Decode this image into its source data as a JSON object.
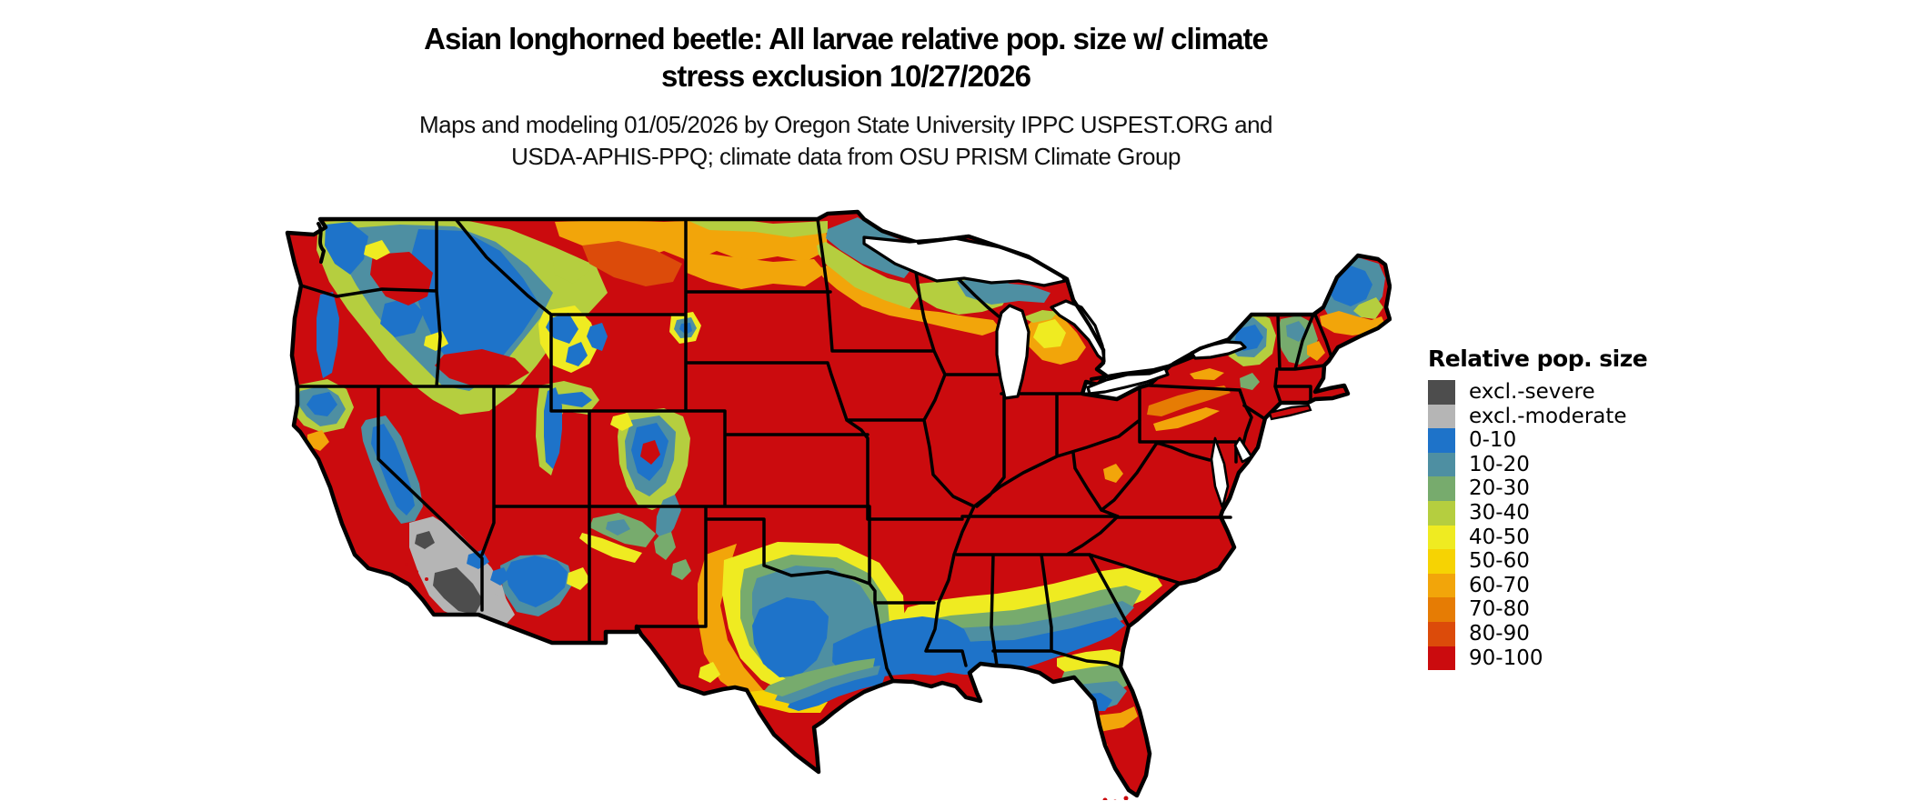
{
  "header": {
    "title_line1": "Asian longhorned beetle: All larvae relative pop. size w/ climate",
    "title_line2": "stress exclusion 10/27/2026",
    "subtitle_line1": "Maps and modeling 01/05/2026 by Oregon State University IPPC USPEST.ORG and",
    "subtitle_line2": "USDA-APHIS-PPQ; climate data from OSU PRISM Climate Group"
  },
  "legend": {
    "title": "Relative pop. size",
    "entries": [
      {
        "key": "exclSevere",
        "label": "excl.-severe",
        "color": "#4D4D4D"
      },
      {
        "key": "exclModerate",
        "label": "excl.-moderate",
        "color": "#B5B5B5"
      },
      {
        "key": "b0",
        "label": "0-10",
        "color": "#1E73C9"
      },
      {
        "key": "b10",
        "label": "10-20",
        "color": "#4E8FA2"
      },
      {
        "key": "b20",
        "label": "20-30",
        "color": "#77AB6D"
      },
      {
        "key": "b30",
        "label": "30-40",
        "color": "#B5CE3F"
      },
      {
        "key": "b40",
        "label": "40-50",
        "color": "#EFEB21"
      },
      {
        "key": "b50",
        "label": "50-60",
        "color": "#F6D303"
      },
      {
        "key": "b60",
        "label": "60-70",
        "color": "#F2A50A"
      },
      {
        "key": "b70",
        "label": "70-80",
        "color": "#E67C04"
      },
      {
        "key": "b80",
        "label": "80-90",
        "color": "#DC4B0A"
      },
      {
        "key": "b90",
        "label": "90-100",
        "color": "#CB0B0E"
      }
    ]
  }
}
